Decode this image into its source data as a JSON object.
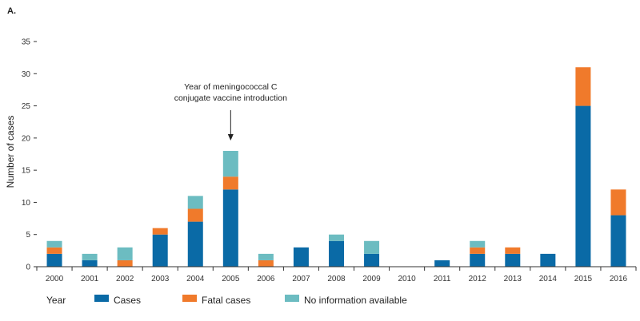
{
  "panel_label": "A.",
  "chart_data": {
    "type": "bar",
    "stacked": true,
    "categories": [
      "2000",
      "2001",
      "2002",
      "2003",
      "2004",
      "2005",
      "2006",
      "2007",
      "2008",
      "2009",
      "2010",
      "2011",
      "2012",
      "2013",
      "2014",
      "2015",
      "2016"
    ],
    "series": [
      {
        "name": "Cases",
        "color": "#0a6aa6",
        "values": [
          2,
          1,
          0,
          5,
          7,
          12,
          0,
          3,
          4,
          2,
          0,
          1,
          2,
          2,
          2,
          25,
          8
        ]
      },
      {
        "name": "Fatal cases",
        "color": "#f07a2b",
        "values": [
          1,
          0,
          1,
          1,
          2,
          2,
          1,
          0,
          0,
          0,
          0,
          0,
          1,
          1,
          0,
          6,
          4
        ]
      },
      {
        "name": "No information available",
        "color": "#6cbcc1",
        "values": [
          1,
          1,
          2,
          0,
          2,
          4,
          1,
          0,
          1,
          2,
          0,
          0,
          1,
          0,
          0,
          0,
          0
        ]
      }
    ],
    "xlabel": "Year",
    "ylabel": "Number of cases",
    "ylim": [
      0,
      35
    ],
    "yticks": [
      0,
      5,
      10,
      15,
      20,
      25,
      30,
      35
    ],
    "grid": false,
    "legend_position": "bottom",
    "annotation": {
      "lines": [
        "Year of meningococcal C",
        "conjugate vaccine  introduction"
      ],
      "category": "2005"
    }
  }
}
